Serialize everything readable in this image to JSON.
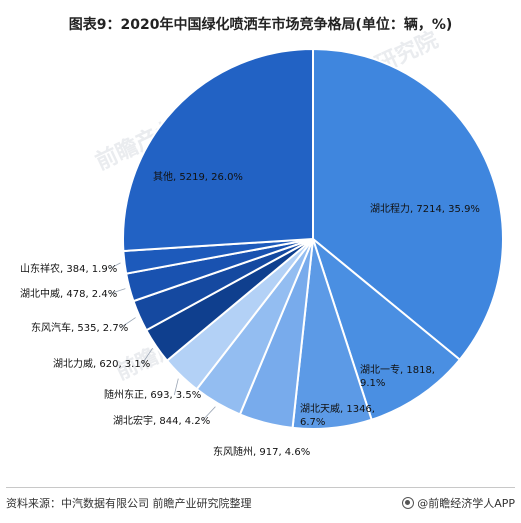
{
  "title": "图表9：2020年中国绿化喷洒车市场竞争格局(单位：辆，%)",
  "source": "资料来源：中汽数据有限公司 前瞻产业研究院整理",
  "brand": "@前瞻经济学人APP",
  "watermark": "前瞻产业研究院",
  "colors": {
    "darkBlue": "#1f5bb8",
    "mediumBlue": "#3c82dc",
    "lightBlue": "#8bbaf0",
    "navy": "#0d3f8c"
  },
  "chart_data": {
    "type": "pie",
    "title": "图表9：2020年中国绿化喷洒车市场竞争格局(单位：辆，%)",
    "unit": "辆，%",
    "slices": [
      {
        "name": "湖北程力",
        "value": 7214,
        "percent": 35.9,
        "label": "湖北程力, 7214, 35.9%",
        "color": "#3f86de"
      },
      {
        "name": "湖北一专",
        "value": 1818,
        "percent": 9.1,
        "label": "湖北一专, 1818, 9.1%",
        "color": "#4a8fe2"
      },
      {
        "name": "湖北天威",
        "value": 1346,
        "percent": 6.7,
        "label": "湖北天威, 1346, 6.7%",
        "color": "#5c9ae6"
      },
      {
        "name": "东风随州",
        "value": 917,
        "percent": 4.6,
        "label": "东风随州, 917, 4.6%",
        "color": "#78abec"
      },
      {
        "name": "湖北宏宇",
        "value": 844,
        "percent": 4.2,
        "label": "湖北宏宇, 844, 4.2%",
        "color": "#93bdf1"
      },
      {
        "name": "随州东正",
        "value": 693,
        "percent": 3.5,
        "label": "随州东正, 693, 3.5%",
        "color": "#b3d1f6"
      },
      {
        "name": "湖北力威",
        "value": 620,
        "percent": 3.1,
        "label": "湖北力威, 620, 3.1%",
        "color": "#0f3f8e"
      },
      {
        "name": "东风汽车",
        "value": 535,
        "percent": 2.7,
        "label": "东风汽车, 535, 2.7%",
        "color": "#1549a0"
      },
      {
        "name": "湖北中威",
        "value": 478,
        "percent": 2.4,
        "label": "湖北中威, 478, 2.4%",
        "color": "#1952b0"
      },
      {
        "name": "山东祥农",
        "value": 384,
        "percent": 1.9,
        "label": "山东祥农, 384, 1.9%",
        "color": "#1d5abb"
      },
      {
        "name": "其他",
        "value": 5219,
        "percent": 26.0,
        "label": "其他, 5219, 26.0%",
        "color": "#2262c4"
      }
    ]
  }
}
